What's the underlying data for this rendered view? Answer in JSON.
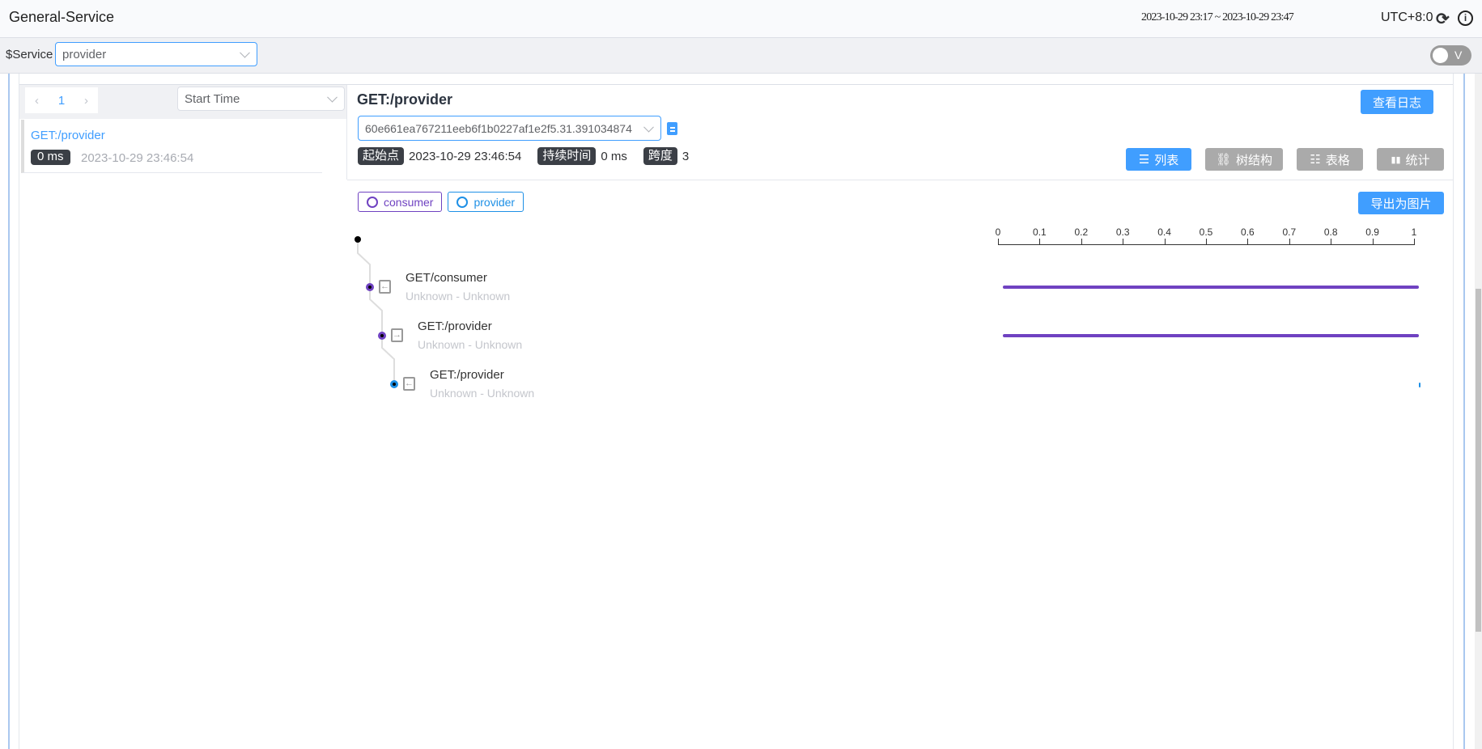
{
  "header": {
    "title": "General-Service",
    "time_range": "2023-10-29 23:17 ~ 2023-10-29 23:47",
    "timezone": "UTC+8:0",
    "icons": [
      "refresh-icon",
      "info-icon"
    ]
  },
  "toolbar": {
    "service_label": "$Service",
    "service_value": "provider",
    "toggle_label": "V"
  },
  "list": {
    "page": "1",
    "sort_value": "Start Time",
    "items": [
      {
        "title": "GET:/provider",
        "duration": "0 ms",
        "time": "2023-10-29 23:46:54"
      }
    ]
  },
  "detail": {
    "title": "GET:/provider",
    "view_logs": "查看日志",
    "trace_id": "60e661ea767211eeb6f1b0227af1e2f5.31.391034874",
    "start_label": "起始点",
    "start_value": "2023-10-29 23:46:54",
    "duration_label": "持续时间",
    "duration_value": "0 ms",
    "spans_label": "跨度",
    "spans_value": "3",
    "views": [
      {
        "label": "列表",
        "active": true
      },
      {
        "label": "树结构",
        "active": false
      },
      {
        "label": "表格",
        "active": false
      },
      {
        "label": "统计",
        "active": false
      }
    ],
    "export": "导出为图片",
    "legend": [
      {
        "name": "consumer",
        "color": "#6f42c1"
      },
      {
        "name": "provider",
        "color": "#1e90e6"
      }
    ]
  },
  "chart_data": {
    "type": "bar",
    "axis_ticks": [
      "0",
      "0.1",
      "0.2",
      "0.3",
      "0.4",
      "0.5",
      "0.6",
      "0.7",
      "0.8",
      "0.9",
      "1"
    ],
    "xlim": [
      0,
      1
    ],
    "spans": [
      {
        "name": "GET/consumer",
        "sub": "Unknown - Unknown",
        "service": "consumer",
        "start": 0,
        "end": 1,
        "kind": "entry-icon"
      },
      {
        "name": "GET:/provider",
        "sub": "Unknown - Unknown",
        "service": "consumer",
        "start": 0,
        "end": 1,
        "kind": "exit-icon"
      },
      {
        "name": "GET:/provider",
        "sub": "Unknown - Unknown",
        "service": "provider",
        "start": 1,
        "end": 1,
        "kind": "entry-icon"
      }
    ]
  }
}
